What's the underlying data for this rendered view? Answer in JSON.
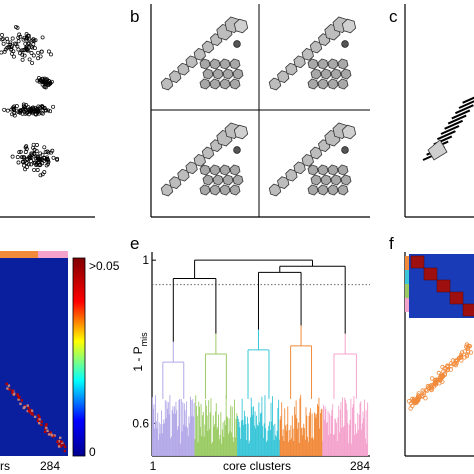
{
  "panels": {
    "b": {
      "label": "b"
    },
    "c": {
      "label": "c"
    },
    "e": {
      "label": "e"
    },
    "f": {
      "label": "f"
    }
  },
  "panel_d": {
    "colorbar_max": ">0.05",
    "colorbar_min": "0",
    "xlabel_fragment": "rs",
    "x_end": "284",
    "colors": {
      "background": "#0a1f9e",
      "hot": "#b40000"
    }
  },
  "chart_data": {
    "type": "dendrogram",
    "title": "",
    "xlabel": "core clusters",
    "ylabel_main": "1 - P",
    "ylabel_sub": "mis",
    "x_range": [
      1,
      284
    ],
    "x_ticks": [
      "1",
      "284"
    ],
    "y_ticks": [
      {
        "value": 1,
        "label": "1"
      },
      {
        "value": 0.6,
        "label": "0.6"
      }
    ],
    "threshold": 0.94,
    "ylim": [
      0.52,
      1.02
    ],
    "clusters": [
      {
        "color": "#b3a8e8",
        "merge_height": 0.8
      },
      {
        "color": "#9acb63",
        "merge_height": 0.82
      },
      {
        "color": "#39c6d8",
        "merge_height": 0.83
      },
      {
        "color": "#f18a3a",
        "merge_height": 0.84
      },
      {
        "color": "#f4a3cd",
        "merge_height": 0.82
      }
    ]
  }
}
